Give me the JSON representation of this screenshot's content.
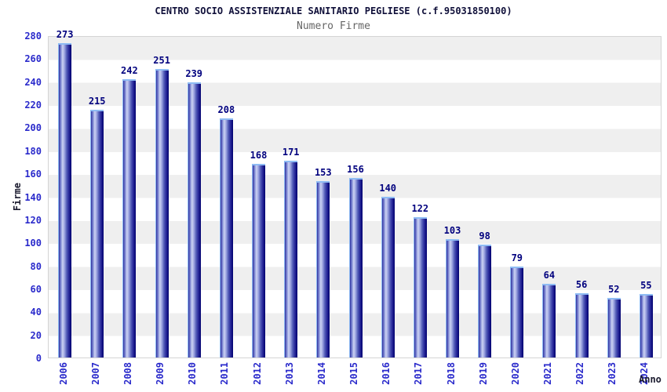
{
  "chart_data": {
    "type": "bar",
    "title": "CENTRO SOCIO ASSISTENZIALE SANITARIO PEGLIESE (c.f.95031850100)",
    "subtitle": "Numero Firme",
    "xlabel": "Anno",
    "ylabel": "Firme",
    "categories": [
      "2006",
      "2007",
      "2008",
      "2009",
      "2010",
      "2011",
      "2012",
      "2013",
      "2014",
      "2015",
      "2016",
      "2017",
      "2018",
      "2019",
      "2020",
      "2021",
      "2022",
      "2023",
      "2024"
    ],
    "values": [
      273,
      215,
      242,
      251,
      239,
      208,
      168,
      171,
      153,
      156,
      140,
      122,
      103,
      98,
      79,
      64,
      56,
      52,
      55
    ],
    "yticks": [
      0,
      20,
      40,
      60,
      80,
      100,
      120,
      140,
      160,
      180,
      200,
      220,
      240,
      260,
      280
    ],
    "ylim": [
      0,
      280
    ],
    "grid": "alternating horizontal bands",
    "legend": "none",
    "colors": {
      "bar_dark": "#00006e",
      "bar_mid": "#32329e",
      "bar_highlight": "#ccd3f3",
      "bar_outline": "#8fbcf4",
      "tick_label_blue": "#2a2acb",
      "value_label_navy": "#00007e",
      "title_color": "#10103a",
      "subtitle_gray": "#666666",
      "band_gray": "#efefef",
      "plot_border": "#d4d4d4"
    }
  }
}
